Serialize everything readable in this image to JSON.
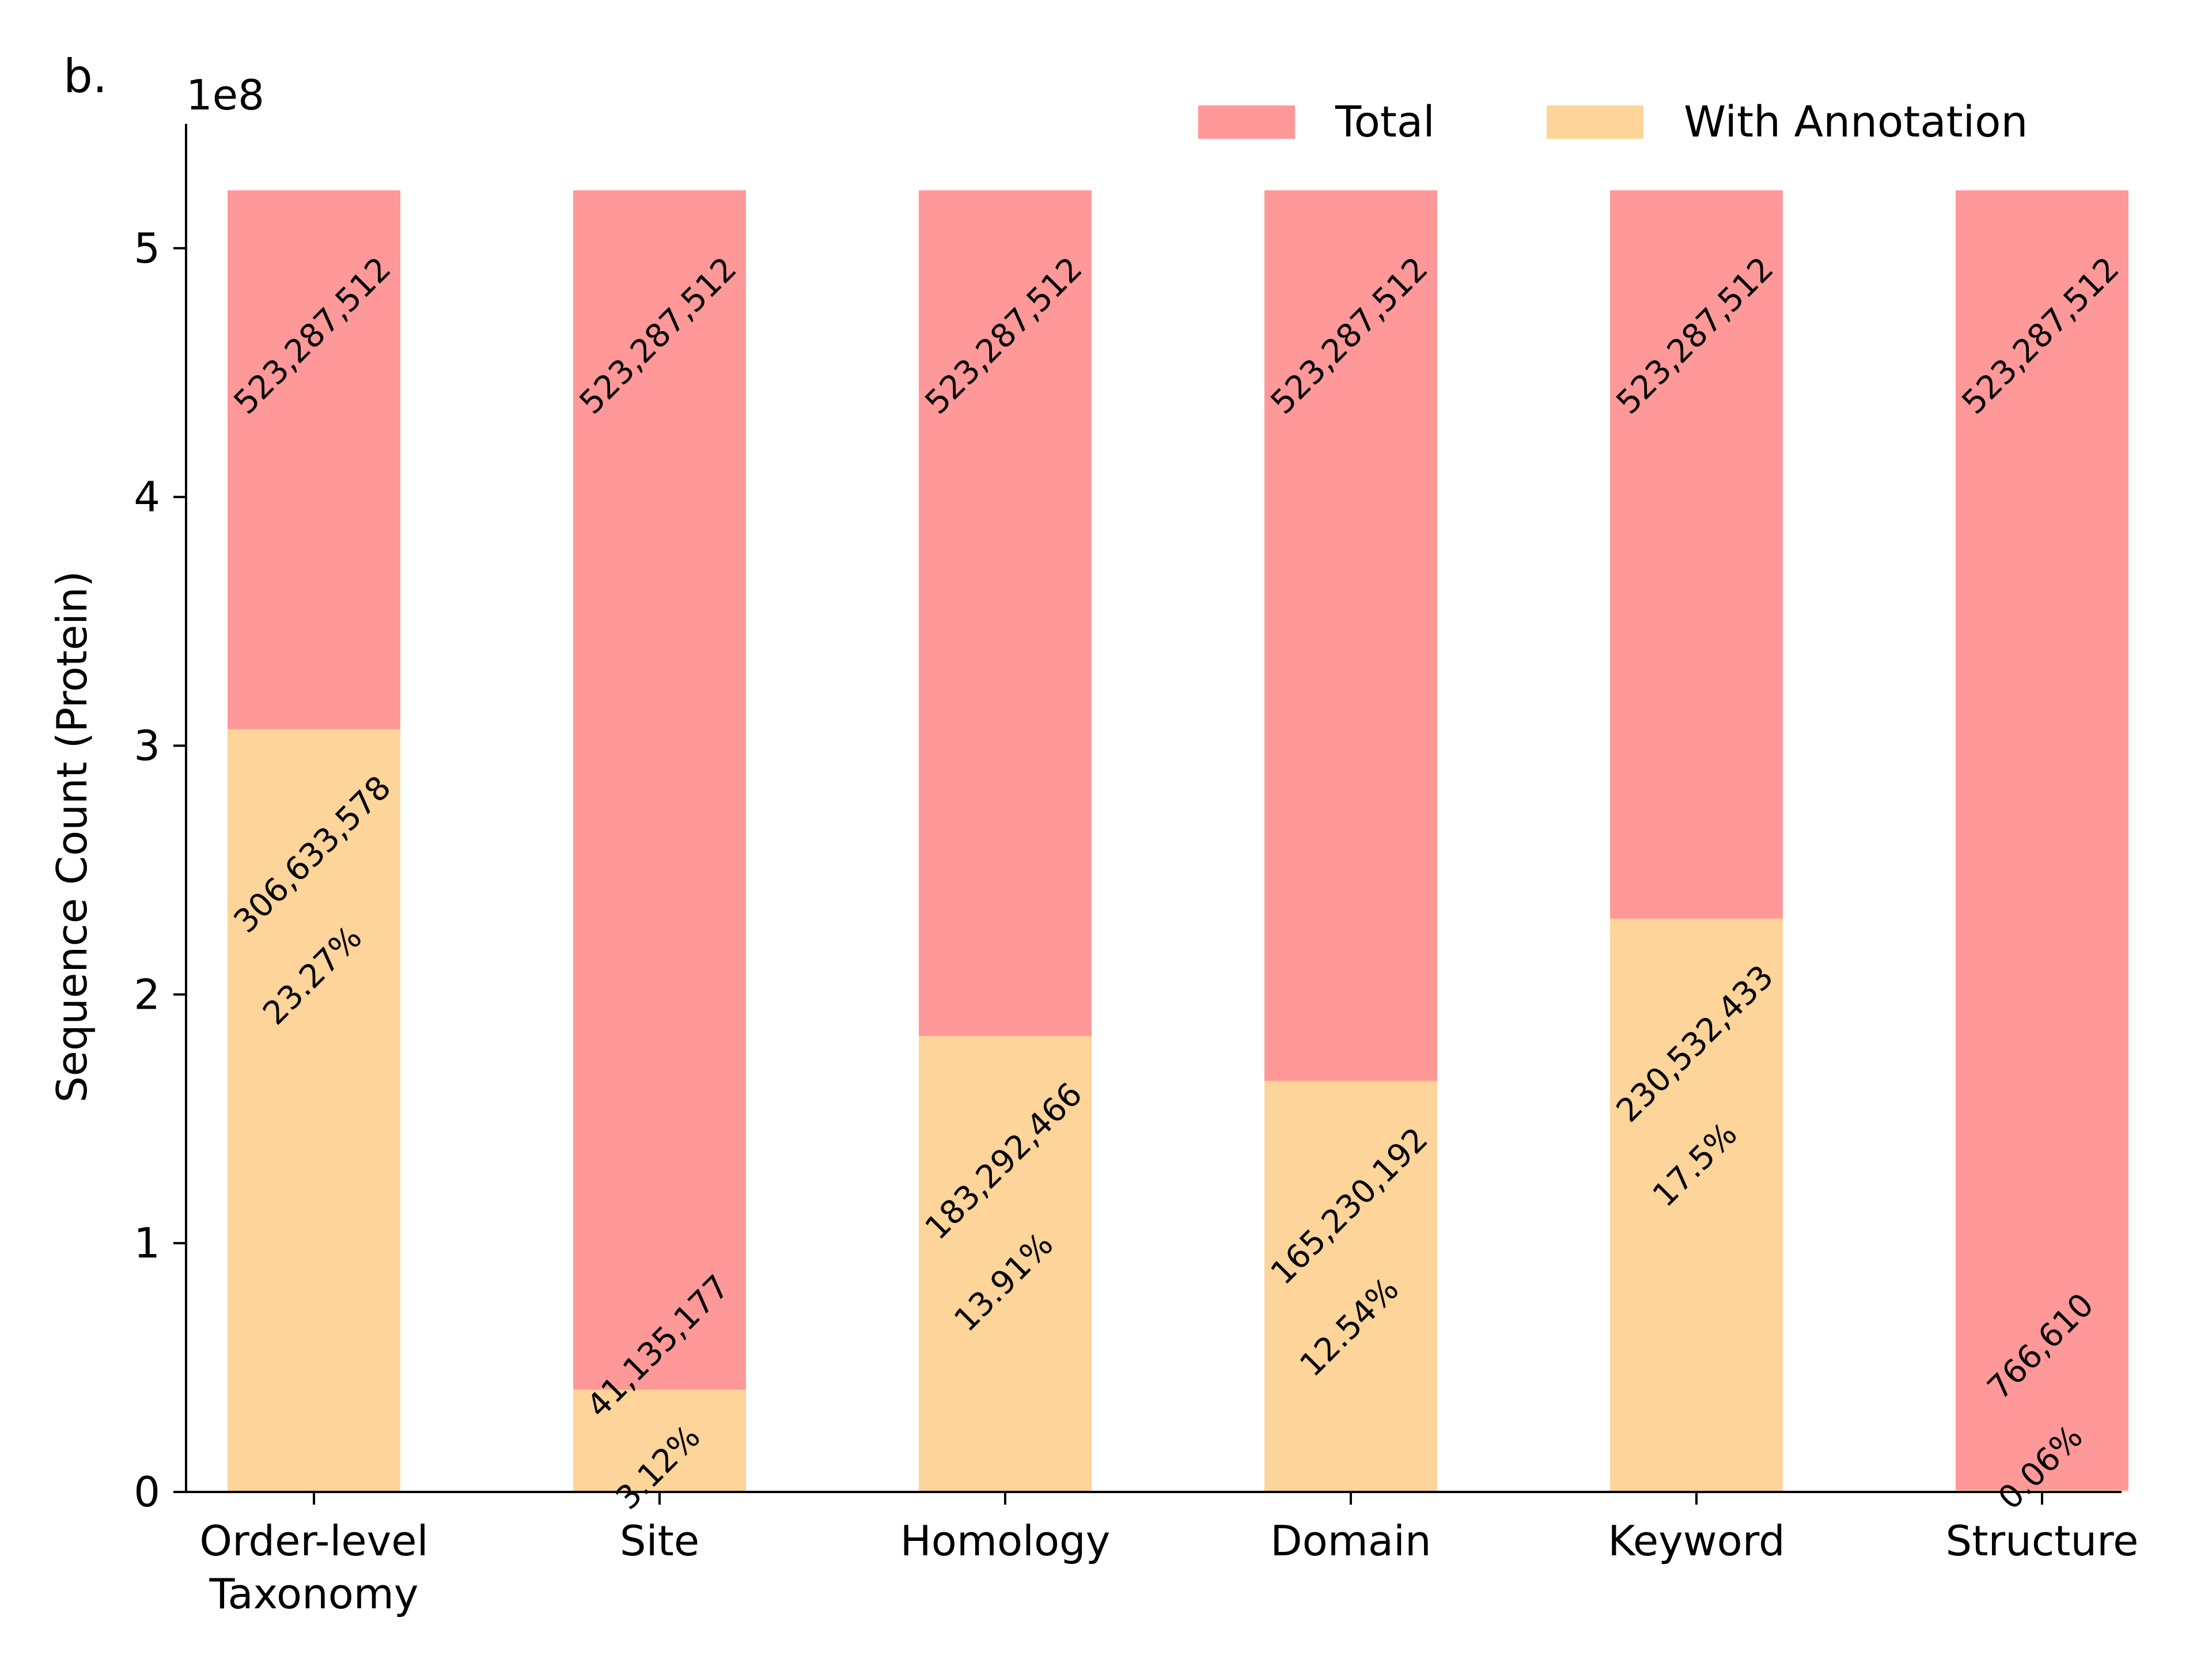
{
  "panel_label": "b.",
  "colors": {
    "total": "#FF9999",
    "annotated": "#FDD49A"
  },
  "chart_data": {
    "type": "bar",
    "stacking": "overlaid",
    "categories": [
      "Order-level\nTaxonomy",
      "Site",
      "Homology",
      "Domain",
      "Keyword",
      "Structure"
    ],
    "series": [
      {
        "name": "Total",
        "values": [
          523287512,
          523287512,
          523287512,
          523287512,
          523287512,
          523287512
        ],
        "labels": [
          "523,287,512",
          "523,287,512",
          "523,287,512",
          "523,287,512",
          "523,287,512",
          "523,287,512"
        ]
      },
      {
        "name": "With Annotation",
        "values": [
          306633578,
          41135177,
          183292466,
          165230192,
          230532433,
          766610
        ],
        "labels": [
          "306,633,578",
          "41,135,177",
          "183,292,466",
          "165,230,192",
          "230,532,433",
          "766,610"
        ],
        "percent_labels": [
          "23.27%",
          "3.12%",
          "13.91%",
          "12.54%",
          "17.5%",
          "0.06%"
        ]
      }
    ],
    "ylabel": "Sequence Count (Protein)",
    "xlabel": "",
    "ylim": [
      0,
      550000000
    ],
    "y_ticks": [
      0,
      100000000,
      200000000,
      300000000,
      400000000,
      500000000
    ],
    "y_tick_labels": [
      "0",
      "1",
      "2",
      "3",
      "4",
      "5"
    ],
    "y_scale_label": "1e8",
    "grid": false,
    "legend_position": "top-right"
  }
}
